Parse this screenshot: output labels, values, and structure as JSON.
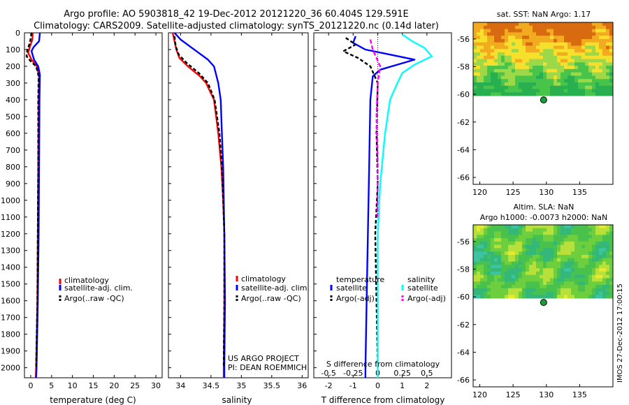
{
  "header": {
    "line1": "Argo profile: AO 5903818_42 19-Dec-2012 20121220_36 60.404S 129.591E",
    "line2": "Climatology: CARS2009. Satellite-adjusted climatology: synTS_20121220.nc (0.14d later)"
  },
  "colors": {
    "climatology": "#ff0000",
    "satellite": "#0000ff",
    "argo": "#000000",
    "satellite_s": "#00ffff",
    "argo_s": "#ff00ff"
  },
  "chart_data": [
    {
      "type": "line",
      "id": "temperature",
      "xlabel": "temperature (deg C)",
      "ylabel": "",
      "xlim": [
        -1.5,
        31.5
      ],
      "ylim": [
        2060,
        0
      ],
      "xticks": [
        0,
        5,
        10,
        15,
        20,
        25,
        30
      ],
      "yticks": [
        0,
        100,
        200,
        300,
        400,
        500,
        600,
        700,
        800,
        900,
        1000,
        1100,
        1200,
        1300,
        1400,
        1500,
        1600,
        1700,
        1800,
        1900,
        2000
      ],
      "series": [
        {
          "name": "climatology",
          "color_key": "climatology",
          "dash": "",
          "points": [
            [
              0.5,
              0
            ],
            [
              0.4,
              40
            ],
            [
              -0.3,
              90
            ],
            [
              -0.6,
              120
            ],
            [
              0.2,
              160
            ],
            [
              1.5,
              200
            ],
            [
              2.0,
              260
            ],
            [
              1.9,
              400
            ],
            [
              1.8,
              800
            ],
            [
              1.7,
              1200
            ],
            [
              1.6,
              1600
            ],
            [
              1.3,
              2000
            ],
            [
              1.2,
              2060
            ]
          ]
        },
        {
          "name": "satellite-adj. clim.",
          "color_key": "satellite",
          "dash": "",
          "points": [
            [
              2.2,
              0
            ],
            [
              2.0,
              50
            ],
            [
              0.7,
              85
            ],
            [
              0.2,
              110
            ],
            [
              0.8,
              160
            ],
            [
              1.8,
              200
            ],
            [
              2.2,
              250
            ],
            [
              2.1,
              400
            ],
            [
              2.0,
              800
            ],
            [
              1.9,
              1200
            ],
            [
              1.7,
              1600
            ],
            [
              1.4,
              2000
            ],
            [
              1.3,
              2060
            ]
          ]
        },
        {
          "name": "Argo(..raw -QC)",
          "color_key": "argo",
          "dash": "5,3",
          "points": [
            [
              0.2,
              0
            ],
            [
              -0.2,
              60
            ],
            [
              -0.8,
              100
            ],
            [
              -1.0,
              140
            ],
            [
              0.0,
              170
            ],
            [
              1.3,
              200
            ],
            [
              1.9,
              260
            ],
            [
              1.8,
              400
            ],
            [
              1.8,
              800
            ],
            [
              1.7,
              1200
            ],
            [
              1.6,
              1600
            ],
            [
              1.3,
              2000
            ]
          ]
        }
      ],
      "legend": [
        "climatology",
        "satellite-adj. clim.",
        "Argo(..raw -QC)"
      ],
      "legend_position": "lower-right"
    },
    {
      "type": "line",
      "id": "salinity",
      "xlabel": "salinity",
      "ylabel": "",
      "xlim": [
        33.8,
        36.1
      ],
      "ylim": [
        2060,
        0
      ],
      "xticks": [
        34,
        34.5,
        35,
        35.5,
        36
      ],
      "series": [
        {
          "name": "climatology",
          "color_key": "climatology",
          "dash": "",
          "points": [
            [
              33.87,
              0
            ],
            [
              33.9,
              50
            ],
            [
              33.93,
              100
            ],
            [
              33.98,
              150
            ],
            [
              34.12,
              200
            ],
            [
              34.32,
              260
            ],
            [
              34.42,
              300
            ],
            [
              34.55,
              400
            ],
            [
              34.62,
              600
            ],
            [
              34.67,
              800
            ],
            [
              34.7,
              1000
            ],
            [
              34.72,
              1200
            ],
            [
              34.72,
              1600
            ],
            [
              34.71,
              2000
            ],
            [
              34.71,
              2060
            ]
          ]
        },
        {
          "name": "satellite-adj. clim.",
          "color_key": "satellite",
          "dash": "",
          "points": [
            [
              33.9,
              0
            ],
            [
              34.0,
              40
            ],
            [
              34.15,
              80
            ],
            [
              34.3,
              120
            ],
            [
              34.45,
              160
            ],
            [
              34.55,
              200
            ],
            [
              34.62,
              300
            ],
            [
              34.66,
              400
            ],
            [
              34.68,
              600
            ],
            [
              34.7,
              800
            ],
            [
              34.72,
              1200
            ],
            [
              34.73,
              1600
            ],
            [
              34.72,
              2000
            ],
            [
              34.72,
              2060
            ]
          ]
        },
        {
          "name": "Argo(..raw -QC)",
          "color_key": "argo",
          "dash": "5,3",
          "points": [
            [
              33.9,
              20
            ],
            [
              33.92,
              80
            ],
            [
              33.97,
              130
            ],
            [
              34.1,
              180
            ],
            [
              34.3,
              240
            ],
            [
              34.45,
              300
            ],
            [
              34.56,
              400
            ],
            [
              34.64,
              600
            ],
            [
              34.68,
              800
            ],
            [
              34.7,
              1000
            ],
            [
              34.72,
              1200
            ],
            [
              34.72,
              1600
            ],
            [
              34.71,
              2000
            ]
          ]
        }
      ],
      "legend": [
        "climatology",
        "satellite-adj. clim.",
        "Argo(..raw -QC)"
      ],
      "legend_position": "lower-right",
      "annotation": [
        "US ARGO PROJECT",
        "PI: DEAN ROEMMICH"
      ]
    },
    {
      "type": "line",
      "id": "difference",
      "xlabel": "T difference from climatology",
      "xlabel_top": "S difference from climatology",
      "xlim": [
        -2.6,
        3.0
      ],
      "ylim": [
        2060,
        0
      ],
      "xticks": [
        -2,
        -1,
        0,
        1,
        2
      ],
      "xticks_s": [
        "-0.5",
        "-0.25",
        "0",
        "0.25",
        "0.5"
      ],
      "xticks_s_pos": [
        -2,
        -1,
        0,
        1,
        2
      ],
      "zero_line": true,
      "legend_titles": [
        "temperature",
        "salinity"
      ],
      "series": [
        {
          "name": "satellite",
          "group": "temperature",
          "color_key": "satellite",
          "dash": "",
          "points": [
            [
              -0.9,
              20
            ],
            [
              -1.0,
              60
            ],
            [
              -0.5,
              100
            ],
            [
              0.5,
              130
            ],
            [
              1.5,
              160
            ],
            [
              0.8,
              190
            ],
            [
              0.1,
              220
            ],
            [
              -0.2,
              260
            ],
            [
              -0.3,
              400
            ],
            [
              -0.35,
              800
            ],
            [
              -0.4,
              1200
            ],
            [
              -0.45,
              1600
            ],
            [
              -0.5,
              2000
            ],
            [
              -0.5,
              2060
            ]
          ]
        },
        {
          "name": "Argo(-adj)",
          "group": "temperature",
          "color_key": "argo",
          "dash": "5,3",
          "points": [
            [
              -1.3,
              30
            ],
            [
              -0.9,
              70
            ],
            [
              -1.4,
              110
            ],
            [
              -0.8,
              150
            ],
            [
              -0.3,
              200
            ],
            [
              0.0,
              300
            ],
            [
              -0.05,
              600
            ],
            [
              0.0,
              900
            ],
            [
              -0.1,
              1200
            ],
            [
              -0.05,
              1600
            ],
            [
              0.0,
              2000
            ]
          ]
        },
        {
          "name": "satellite",
          "group": "salinity",
          "color_key": "satellite_s",
          "dash": "",
          "points": [
            [
              1.0,
              10
            ],
            [
              1.4,
              50
            ],
            [
              1.9,
              90
            ],
            [
              2.2,
              140
            ],
            [
              1.5,
              190
            ],
            [
              1.0,
              240
            ],
            [
              0.8,
              300
            ],
            [
              0.5,
              400
            ],
            [
              0.3,
              600
            ],
            [
              0.1,
              900
            ],
            [
              0.0,
              1200
            ],
            [
              0.0,
              1600
            ],
            [
              0.0,
              2060
            ]
          ]
        },
        {
          "name": "Argo(-adj)",
          "group": "salinity",
          "color_key": "argo_s",
          "dash": "6,3",
          "points": [
            [
              -0.3,
              40
            ],
            [
              -0.2,
              100
            ],
            [
              0.1,
              200
            ],
            [
              0.0,
              300
            ],
            [
              -0.05,
              500
            ],
            [
              0.0,
              800
            ],
            [
              -0.02,
              1100
            ]
          ]
        }
      ],
      "legend_position": "lower-center"
    },
    {
      "type": "heatmap",
      "id": "sst_map",
      "title": "sat. SST: NaN Argo: 1.17",
      "xlim": [
        119,
        140
      ],
      "ylim": [
        -66.5,
        -54.8
      ],
      "xticks": [
        120,
        125,
        130,
        135
      ],
      "yticks": [
        -56,
        -58,
        -60,
        -62,
        -64,
        -66
      ],
      "data_extent": {
        "lon": [
          119,
          140
        ],
        "lat": [
          -60.1,
          -54.8
        ]
      },
      "palette": [
        "#d86a10",
        "#f2aa1e",
        "#f6e02c",
        "#9cd848",
        "#49c44a",
        "#28b050"
      ],
      "marker": {
        "lon": 129.591,
        "lat": -60.404
      }
    },
    {
      "type": "heatmap",
      "id": "sla_map",
      "title": "Altim. SLA: NaN",
      "subtitle": "Argo h1000: -0.0073 h2000: NaN",
      "xlim": [
        119,
        140
      ],
      "ylim": [
        -66.5,
        -54.8
      ],
      "xticks": [
        120,
        125,
        130,
        135
      ],
      "yticks": [
        -56,
        -58,
        -60,
        -62,
        -64,
        -66
      ],
      "data_extent": {
        "lon": [
          119,
          140
        ],
        "lat": [
          -60.1,
          -54.8
        ]
      },
      "palette": [
        "#3cc3a0",
        "#34b87a",
        "#48c24c",
        "#6ecf3e",
        "#b8e03a",
        "#e4ec30"
      ],
      "marker": {
        "lon": 129.591,
        "lat": -60.404
      }
    }
  ],
  "footer": {
    "stamp": "IMOS 27-Dec-2012 17:00:15"
  }
}
